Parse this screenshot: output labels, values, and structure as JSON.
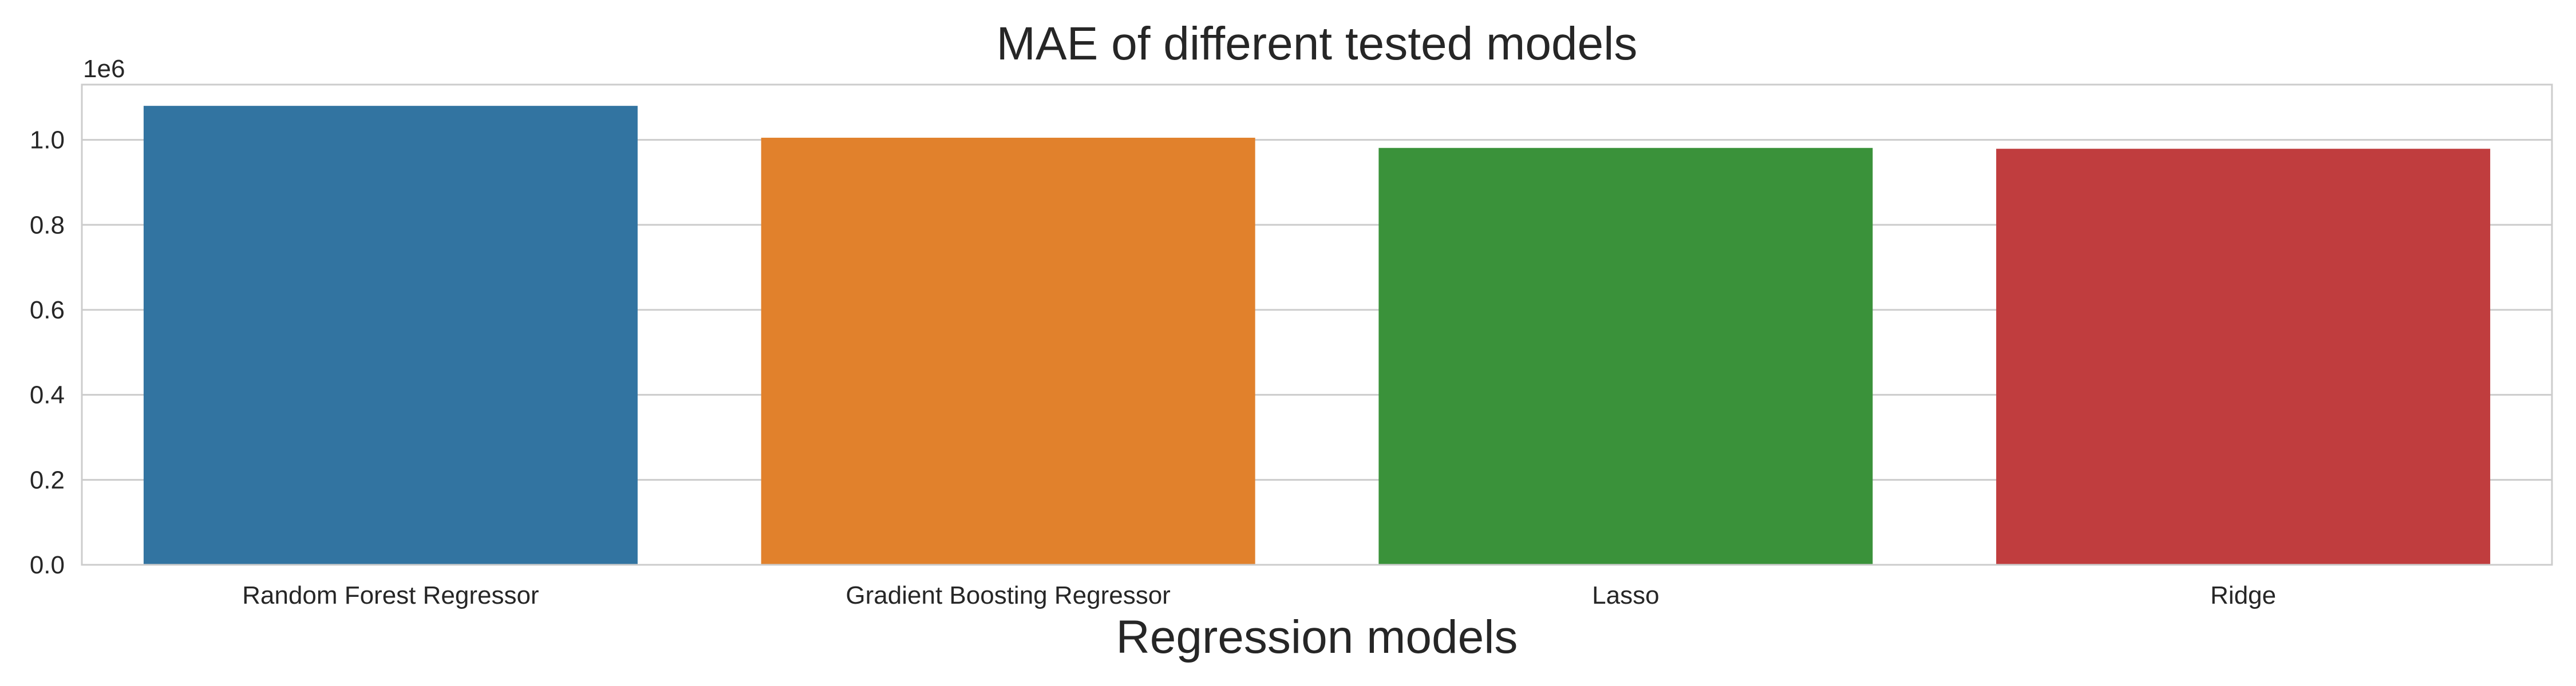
{
  "chart_data": {
    "type": "bar",
    "title": "MAE of different tested models",
    "xlabel": "Regression models",
    "ylabel": "",
    "y_offset_label": "1e6",
    "categories": [
      "Random Forest Regressor",
      "Gradient Boosting Regressor",
      "Lasso",
      "Ridge"
    ],
    "values": [
      1080000,
      1005000,
      981000,
      979000
    ],
    "colors": [
      "#3274a1",
      "#e1812c",
      "#3a923a",
      "#c03d3e"
    ],
    "ylim": [
      0,
      1130000
    ],
    "yticks": [
      0,
      200000,
      400000,
      600000,
      800000,
      1000000
    ],
    "ytick_labels": [
      "0.0",
      "0.2",
      "0.4",
      "0.6",
      "0.8",
      "1.0"
    ],
    "grid": "horizontal",
    "legend": "none"
  }
}
